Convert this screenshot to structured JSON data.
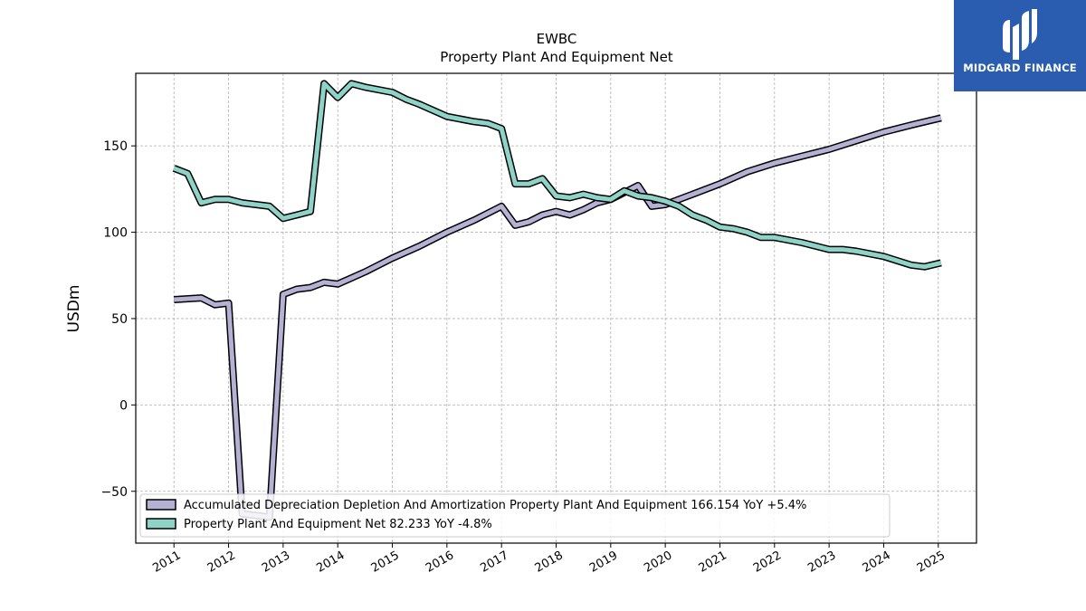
{
  "chart_data": {
    "type": "line",
    "title": "EWBC",
    "subtitle": "Property Plant And Equipment Net",
    "xlabel": "",
    "ylabel": "USDm",
    "xlim": [
      2010.3,
      2025.7
    ],
    "ylim": [
      -80,
      192
    ],
    "x_ticks": [
      "2011",
      "2012",
      "2013",
      "2014",
      "2015",
      "2016",
      "2017",
      "2018",
      "2019",
      "2020",
      "2021",
      "2022",
      "2023",
      "2024",
      "2025"
    ],
    "y_ticks": [
      -50,
      0,
      50,
      100,
      150
    ],
    "grid": true,
    "legend_position": "lower-left",
    "series": [
      {
        "name": "Accumulated Depreciation Depletion And Amortization Property Plant And Equipment",
        "legend_label": "Accumulated Depreciation Depletion And Amortization Property Plant And Equipment  166.154 YoY +5.4%",
        "color": "#b4b1d4",
        "points": [
          [
            2011.0,
            61
          ],
          [
            2011.5,
            62
          ],
          [
            2011.75,
            58
          ],
          [
            2012.0,
            59
          ],
          [
            2012.25,
            -63
          ],
          [
            2012.5,
            -64
          ],
          [
            2012.75,
            -65
          ],
          [
            2013.0,
            64
          ],
          [
            2013.25,
            67
          ],
          [
            2013.5,
            68
          ],
          [
            2013.75,
            71
          ],
          [
            2014.0,
            70
          ],
          [
            2014.5,
            77
          ],
          [
            2015.0,
            85
          ],
          [
            2015.5,
            92
          ],
          [
            2016.0,
            100
          ],
          [
            2016.5,
            107
          ],
          [
            2017.0,
            115
          ],
          [
            2017.25,
            104
          ],
          [
            2017.5,
            106
          ],
          [
            2017.75,
            110
          ],
          [
            2018.0,
            112
          ],
          [
            2018.25,
            110
          ],
          [
            2018.5,
            113
          ],
          [
            2018.75,
            117
          ],
          [
            2019.0,
            119
          ],
          [
            2019.25,
            123
          ],
          [
            2019.5,
            127
          ],
          [
            2019.75,
            115
          ],
          [
            2020.0,
            116
          ],
          [
            2020.5,
            122
          ],
          [
            2021.0,
            128
          ],
          [
            2021.5,
            135
          ],
          [
            2022.0,
            140
          ],
          [
            2022.5,
            144
          ],
          [
            2023.0,
            148
          ],
          [
            2023.5,
            153
          ],
          [
            2024.0,
            158
          ],
          [
            2024.5,
            162
          ],
          [
            2025.05,
            166.154
          ]
        ]
      },
      {
        "name": "Property Plant And Equipment Net",
        "legend_label": "Property Plant And Equipment Net  82.233 YoY -4.8%",
        "color": "#8dd3c7",
        "points": [
          [
            2011.0,
            137
          ],
          [
            2011.25,
            134
          ],
          [
            2011.5,
            117
          ],
          [
            2011.75,
            119
          ],
          [
            2012.0,
            119
          ],
          [
            2012.25,
            117
          ],
          [
            2012.5,
            116
          ],
          [
            2012.75,
            115
          ],
          [
            2013.0,
            108
          ],
          [
            2013.25,
            110
          ],
          [
            2013.5,
            112
          ],
          [
            2013.75,
            186
          ],
          [
            2014.0,
            178
          ],
          [
            2014.25,
            186
          ],
          [
            2014.5,
            184
          ],
          [
            2015.0,
            181
          ],
          [
            2015.25,
            177
          ],
          [
            2015.5,
            174
          ],
          [
            2016.0,
            167
          ],
          [
            2016.5,
            164
          ],
          [
            2016.75,
            163
          ],
          [
            2017.0,
            160
          ],
          [
            2017.25,
            128
          ],
          [
            2017.5,
            128
          ],
          [
            2017.75,
            131
          ],
          [
            2018.0,
            121
          ],
          [
            2018.25,
            120
          ],
          [
            2018.5,
            122
          ],
          [
            2018.75,
            120
          ],
          [
            2019.0,
            119
          ],
          [
            2019.25,
            124
          ],
          [
            2019.5,
            121
          ],
          [
            2019.75,
            120
          ],
          [
            2020.0,
            118
          ],
          [
            2020.25,
            115
          ],
          [
            2020.5,
            110
          ],
          [
            2020.75,
            107
          ],
          [
            2021.0,
            103
          ],
          [
            2021.25,
            102
          ],
          [
            2021.5,
            100
          ],
          [
            2021.75,
            97
          ],
          [
            2022.0,
            97
          ],
          [
            2022.5,
            94
          ],
          [
            2023.0,
            90
          ],
          [
            2023.25,
            90
          ],
          [
            2023.5,
            89
          ],
          [
            2024.0,
            86
          ],
          [
            2024.5,
            81
          ],
          [
            2024.75,
            80
          ],
          [
            2025.05,
            82.233
          ]
        ]
      }
    ]
  },
  "logo": {
    "text": "MIDGARD FINANCE",
    "color": "#2a5db0"
  }
}
